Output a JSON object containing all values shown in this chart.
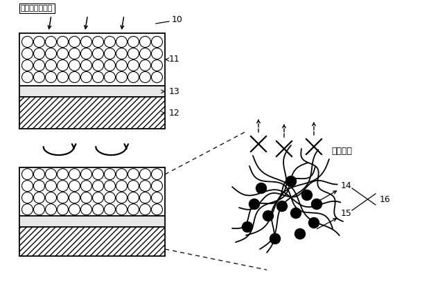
{
  "bg_color": "#ffffff",
  "label_10": "10",
  "label_11": "11",
  "label_12": "12",
  "label_13": "13",
  "label_14": "14",
  "label_15": "15",
  "label_16": "16",
  "label_evap": "電解質溶媒蔣発",
  "label_suppress": "蔣発抑制",
  "line_color": "#000000",
  "figsize": [
    6.22,
    4.09
  ],
  "dpi": 100
}
